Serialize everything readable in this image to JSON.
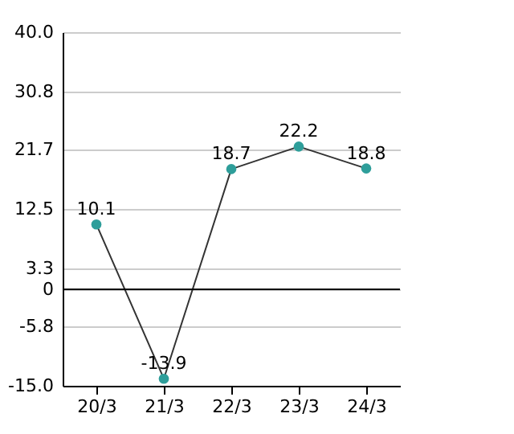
{
  "chart_data": {
    "type": "line",
    "categories": [
      "20/3",
      "21/3",
      "22/3",
      "23/3",
      "24/3"
    ],
    "series": [
      {
        "color": "#333333",
        "colors": [
          "#2e9e9a",
          "#2e9e9a",
          "#2e9e9a",
          "#2e9e9a",
          "#2e9e9a"
        ],
        "values": [
          10.1,
          -13.9,
          18.7,
          22.2,
          18.8
        ]
      }
    ],
    "ylim": [
      -15,
      40
    ],
    "yticks": [
      {
        "value": -15,
        "label": "-15.0"
      },
      -5.8,
      0,
      3.3,
      12.5,
      21.7,
      30.8,
      {
        "value": 40,
        "label": "40.0"
      }
    ],
    "ref_lines": [
      {
        "axis": "y",
        "value": 0,
        "color": "#000000"
      }
    ],
    "grid": "y",
    "marker": "circle",
    "data_labels": true
  }
}
